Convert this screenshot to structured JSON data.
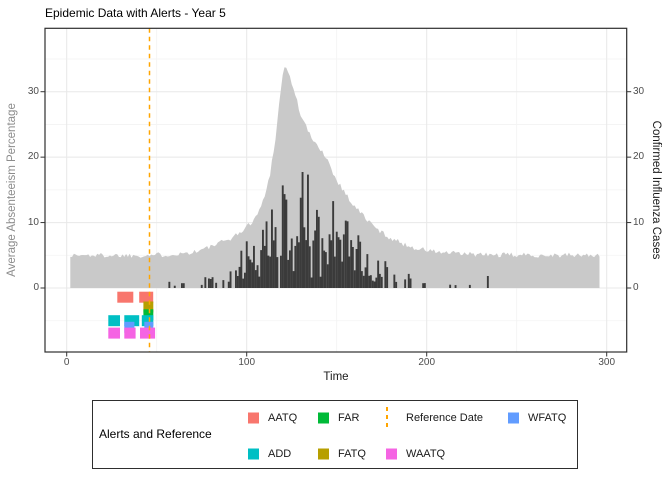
{
  "title": "Epidemic Data with Alerts - Year 5",
  "axes": {
    "x": {
      "label": "Time",
      "ticks": [
        0,
        100,
        200,
        300
      ],
      "minor_ticks": [
        50,
        150,
        250
      ],
      "range": [
        -14,
        312
      ]
    },
    "y_left": {
      "label": "Average Absenteeism Percentage",
      "ticks": [
        0,
        10,
        20,
        30
      ],
      "minor_ticks": [
        -5,
        5,
        15,
        25,
        35
      ],
      "range": [
        -9.8,
        39.7
      ]
    },
    "y_right": {
      "label": "Confirmed Influenza Cases",
      "ticks": [
        0,
        10,
        20,
        30
      ]
    }
  },
  "legend": {
    "title": "Alerts and Reference",
    "entries": [
      {
        "label": "AATQ",
        "key": "square",
        "color": "#F8766D"
      },
      {
        "label": "ADD",
        "key": "square",
        "color": "#00BFC4"
      },
      {
        "label": "FAR",
        "key": "square",
        "color": "#00BA38"
      },
      {
        "label": "FATQ",
        "key": "square",
        "color": "#B79F00"
      },
      {
        "label": "Reference Date",
        "key": "dashed-line",
        "color": "#FFA500"
      },
      {
        "label": "WAATQ",
        "key": "square",
        "color": "#F564E3"
      },
      {
        "label": "WFATQ",
        "key": "square",
        "color": "#619CFF"
      }
    ]
  },
  "colors": {
    "cases_area": "#c9c9c9",
    "absenteeism_bars": "#3b3b3b",
    "reference_line": "#FFA500",
    "grid_major": "#e8e8e8",
    "grid_minor": "#f3f3f3",
    "panel_border": "#2e2e2e",
    "tick_mark": "#333333"
  },
  "chart_data": {
    "type": "area+bar+markers",
    "title": "Epidemic Data with Alerts - Year 5",
    "xlabel": "Time",
    "ylabel_left": "Average Absenteeism Percentage",
    "ylabel_right": "Confirmed Influenza Cases",
    "xlim": [
      -14,
      312
    ],
    "ylim": [
      -9.8,
      39.7
    ],
    "reference_line": {
      "label": "Reference Date",
      "x": 46,
      "style": "dashed",
      "color": "#FFA500"
    },
    "series": [
      {
        "name": "Confirmed Influenza Cases",
        "type": "area",
        "axis": "right",
        "color": "#c9c9c9",
        "t_start": 2,
        "t_end": 296,
        "baseline": 5,
        "peak": {
          "t": 121,
          "value": 34
        },
        "keypoints": [
          [
            2,
            5
          ],
          [
            40,
            5
          ],
          [
            55,
            5.1
          ],
          [
            65,
            5.3
          ],
          [
            72,
            5.6
          ],
          [
            80,
            6.3
          ],
          [
            88,
            7.2
          ],
          [
            95,
            8.2
          ],
          [
            101,
            9.6
          ],
          [
            106,
            11.2
          ],
          [
            110,
            14
          ],
          [
            113,
            17.5
          ],
          [
            116,
            23
          ],
          [
            118,
            28
          ],
          [
            120,
            32.5
          ],
          [
            121,
            34
          ],
          [
            123,
            33
          ],
          [
            126,
            30.5
          ],
          [
            130,
            26.5
          ],
          [
            134,
            24
          ],
          [
            138,
            22
          ],
          [
            142,
            21
          ],
          [
            145,
            19.5
          ],
          [
            149,
            17
          ],
          [
            154,
            14.8
          ],
          [
            159,
            12.8
          ],
          [
            165,
            11
          ],
          [
            171,
            9.3
          ],
          [
            177,
            8.1
          ],
          [
            184,
            7.1
          ],
          [
            191,
            6.3
          ],
          [
            199,
            5.8
          ],
          [
            209,
            5.4
          ],
          [
            220,
            5.2
          ],
          [
            235,
            5.05
          ],
          [
            296,
            5
          ]
        ],
        "noise_amplitude": 0.4
      },
      {
        "name": "Average Absenteeism Percentage",
        "type": "bar",
        "axis": "left",
        "color": "#3b3b3b",
        "max_value": 18.5,
        "envelope_keypoints": [
          [
            96,
            6
          ],
          [
            104,
            9
          ],
          [
            111,
            13
          ],
          [
            117,
            16.5
          ],
          [
            124,
            18.5
          ],
          [
            132,
            18
          ],
          [
            139,
            17
          ],
          [
            146,
            15.5
          ],
          [
            152,
            13
          ],
          [
            158,
            10.5
          ],
          [
            164,
            7.5
          ],
          [
            169,
            4.5
          ],
          [
            172,
            3
          ]
        ],
        "regions": [
          {
            "from": 55,
            "to": 75,
            "density": 0.22,
            "min": 0.3,
            "max": 1.3
          },
          {
            "from": 76,
            "to": 95,
            "density": 0.5,
            "min": 0.4,
            "max": 3.5
          },
          {
            "from": 96,
            "to": 172,
            "density": 0.97,
            "envelope": true
          },
          {
            "from": 173,
            "to": 178,
            "density": 0.9,
            "min": 1.5,
            "max": 4.6
          },
          {
            "from": 179,
            "to": 243,
            "density": 0.16,
            "min": 0.4,
            "max": 2.2
          }
        ]
      }
    ],
    "alerts": [
      {
        "name": "AATQ",
        "color": "#F8766D",
        "row_value": -1.4,
        "intervals": [
          [
            28.1,
            37.0
          ],
          [
            40.3,
            48.1
          ]
        ]
      },
      {
        "name": "FATQ",
        "color": "#B79F00",
        "row_value": -2.9,
        "intervals": [
          [
            42.6,
            48.1
          ]
        ]
      },
      {
        "name": "FAR",
        "color": "#00BA38",
        "row_value": -4.1,
        "intervals": [
          [
            42.6,
            48.1
          ]
        ]
      },
      {
        "name": "ADD",
        "color": "#00BFC4",
        "row_value": -5.0,
        "intervals": [
          [
            23.1,
            29.6
          ],
          [
            32.0,
            40.3
          ],
          [
            41.7,
            48.1
          ]
        ]
      },
      {
        "name": "WFATQ",
        "color": "#619CFF",
        "row_value": -6.0,
        "intervals": [
          [
            32.0,
            37.6
          ],
          [
            43.1,
            48.1
          ]
        ]
      },
      {
        "name": "WAATQ",
        "color": "#F564E3",
        "row_value": -6.9,
        "intervals": [
          [
            23.1,
            29.6
          ],
          [
            32.0,
            38.3
          ],
          [
            40.7,
            49.1
          ]
        ]
      }
    ],
    "grid": true,
    "legend_position": "bottom"
  }
}
